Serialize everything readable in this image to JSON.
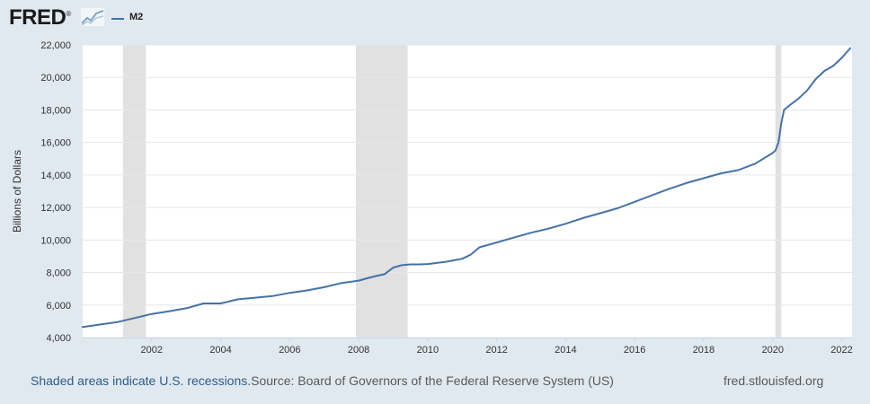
{
  "header": {
    "logo_text": "FRED",
    "logo_mark": "®",
    "legend": {
      "label": "M2",
      "color": "#4572a7"
    }
  },
  "footer": {
    "recession_note": "Shaded areas indicate U.S. recessions.",
    "source_note": "Source: Board of Governors of the Federal Reserve System (US)",
    "site": "fred.stlouisfed.org"
  },
  "chart_data": {
    "type": "line",
    "title": "",
    "xlabel": "",
    "ylabel": "Billions of Dollars",
    "xlim": [
      2000.0,
      2022.3
    ],
    "ylim": [
      4000,
      22000
    ],
    "yticks": [
      4000,
      6000,
      8000,
      10000,
      12000,
      14000,
      16000,
      18000,
      20000,
      22000
    ],
    "ytick_labels": [
      "4,000",
      "6,000",
      "8,000",
      "10,000",
      "12,000",
      "14,000",
      "16,000",
      "18,000",
      "20,000",
      "22,000"
    ],
    "xticks": [
      2002,
      2004,
      2006,
      2008,
      2010,
      2012,
      2014,
      2016,
      2018,
      2020,
      2022
    ],
    "xtick_labels": [
      "2002",
      "2004",
      "2006",
      "2008",
      "2010",
      "2012",
      "2014",
      "2016",
      "2018",
      "2020",
      "2022"
    ],
    "grid": true,
    "recessions": [
      [
        2001.17,
        2001.83
      ],
      [
        2007.92,
        2009.42
      ],
      [
        2020.08,
        2020.25
      ]
    ],
    "colors": {
      "line": "#4572a7",
      "recession": "#e1e1e1",
      "grid": "#e6e6e6",
      "background": "#ffffff"
    },
    "series": [
      {
        "name": "M2",
        "x": [
          2000.0,
          2000.5,
          2001.0,
          2001.5,
          2002.0,
          2002.5,
          2003.0,
          2003.5,
          2004.0,
          2004.5,
          2005.0,
          2005.5,
          2006.0,
          2006.5,
          2007.0,
          2007.5,
          2008.0,
          2008.25,
          2008.5,
          2008.75,
          2009.0,
          2009.25,
          2009.5,
          2009.75,
          2010.0,
          2010.5,
          2011.0,
          2011.25,
          2011.5,
          2011.75,
          2012.0,
          2012.5,
          2013.0,
          2013.5,
          2014.0,
          2014.5,
          2015.0,
          2015.5,
          2016.0,
          2016.5,
          2017.0,
          2017.5,
          2018.0,
          2018.5,
          2019.0,
          2019.5,
          2020.0,
          2020.08,
          2020.17,
          2020.25,
          2020.33,
          2020.5,
          2020.75,
          2021.0,
          2021.25,
          2021.5,
          2021.75,
          2022.0,
          2022.25
        ],
        "values": [
          4650,
          4800,
          4950,
          5200,
          5450,
          5620,
          5800,
          6100,
          6100,
          6350,
          6450,
          6550,
          6750,
          6900,
          7100,
          7350,
          7500,
          7650,
          7780,
          7900,
          8300,
          8450,
          8500,
          8500,
          8520,
          8650,
          8850,
          9100,
          9550,
          9700,
          9850,
          10150,
          10450,
          10700,
          11000,
          11350,
          11650,
          11950,
          12350,
          12750,
          13150,
          13500,
          13800,
          14100,
          14300,
          14700,
          15350,
          15500,
          16000,
          17200,
          18000,
          18300,
          18700,
          19200,
          19900,
          20400,
          20700,
          21200,
          21800
        ]
      }
    ]
  }
}
